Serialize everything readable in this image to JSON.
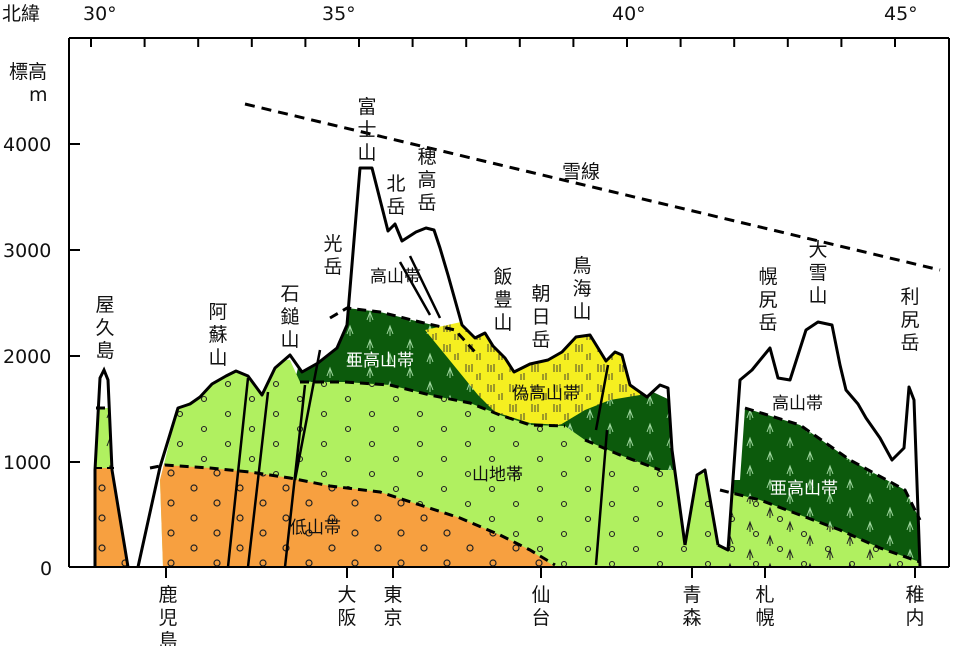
{
  "axes": {
    "top_label": "北緯",
    "lat_ticks": [
      "30°",
      "35°",
      "40°",
      "45°"
    ],
    "y_label_1": "標高",
    "y_label_2": "m",
    "y_ticks": [
      "4000",
      "3000",
      "2000",
      "1000",
      "0"
    ]
  },
  "snow_line": "雪線",
  "zones": {
    "alpine_center": "高山帯",
    "alpine_north": "高山帯",
    "subalpine_center": "亜高山帯",
    "subalpine_north": "亜高山帯",
    "pseudo_alpine": "偽高山帯",
    "montane": "山地帯",
    "lowland": "低山帯"
  },
  "mountains": [
    {
      "key": "yakushima",
      "name": "屋久島"
    },
    {
      "key": "aso",
      "name": "阿蘇山"
    },
    {
      "key": "ishizuchi",
      "name": "石鎚山"
    },
    {
      "key": "kohaku",
      "name": "光岳"
    },
    {
      "key": "fuji",
      "name": "富士山"
    },
    {
      "key": "kitadake",
      "name": "北岳"
    },
    {
      "key": "hotaka",
      "name": "穂高岳"
    },
    {
      "key": "iide",
      "name": "飯豊山"
    },
    {
      "key": "asahi",
      "name": "朝日岳"
    },
    {
      "key": "chokai",
      "name": "鳥海山"
    },
    {
      "key": "poroshiri",
      "name": "幌尻岳"
    },
    {
      "key": "taisetsu",
      "name": "大雪山"
    },
    {
      "key": "rishiri",
      "name": "利尻岳"
    }
  ],
  "cities": [
    {
      "key": "kagoshima",
      "name": "鹿児島"
    },
    {
      "key": "osaka",
      "name": "大阪"
    },
    {
      "key": "tokyo",
      "name": "東京"
    },
    {
      "key": "sendai",
      "name": "仙台"
    },
    {
      "key": "aomori",
      "name": "青森"
    },
    {
      "key": "sapporo",
      "name": "札幌"
    },
    {
      "key": "wakkanai",
      "name": "稚内"
    }
  ],
  "colors": {
    "lowland": "#f7a040",
    "montane": "#b0f060",
    "subalpine": "#0c5a0c",
    "pseudo_alpine": "#f5ef20",
    "alpine": "#ffffff"
  }
}
